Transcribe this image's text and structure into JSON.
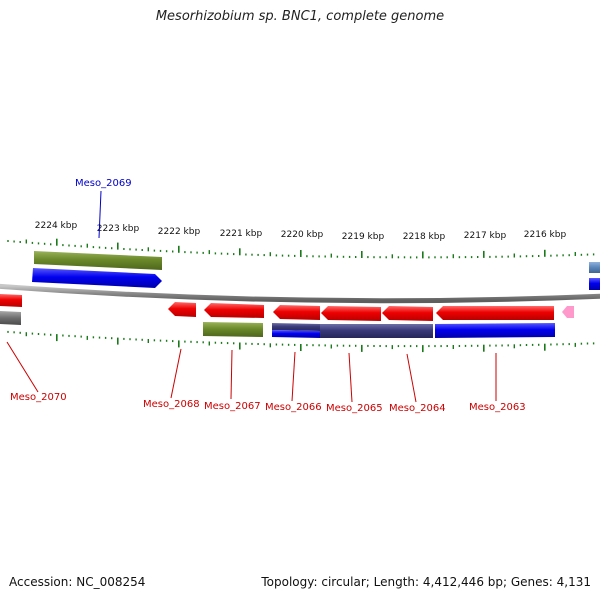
{
  "title": "Mesorhizobium sp. BNC1, complete genome",
  "footer": {
    "accession": "Accession: NC_008254",
    "summary": "Topology: circular; Length: 4,412,446 bp; Genes: 4,131"
  },
  "colors": {
    "cds_red": "#ee0000",
    "gene_olive": "#6b8a2a",
    "gene_blue": "#0000ee",
    "gene_navy": "#3a3a7a",
    "gene_pink": "#ff99cc",
    "gene_steel": "#5b86b8",
    "backbone": "#8a8a8a",
    "ticks": "#1a7a1a",
    "label_red": "#cc0000",
    "label_blue": "#0000cc"
  },
  "scale": {
    "labels": [
      "2224 kbp",
      "2223 kbp",
      "2222 kbp",
      "2221 kbp",
      "2220 kbp",
      "2219 kbp",
      "2218 kbp",
      "2217 kbp",
      "2216 kbp"
    ]
  },
  "genes": [
    {
      "name": "Meso_2069",
      "strand": "forward",
      "color": "label_blue"
    },
    {
      "name": "Meso_2070",
      "strand": "reverse",
      "color": "label_red"
    },
    {
      "name": "Meso_2068",
      "strand": "reverse",
      "color": "label_red"
    },
    {
      "name": "Meso_2067",
      "strand": "reverse",
      "color": "label_red"
    },
    {
      "name": "Meso_2066",
      "strand": "reverse",
      "color": "label_red"
    },
    {
      "name": "Meso_2065",
      "strand": "reverse",
      "color": "label_red"
    },
    {
      "name": "Meso_2064",
      "strand": "reverse",
      "color": "label_red"
    },
    {
      "name": "Meso_2063",
      "strand": "reverse",
      "color": "label_red"
    }
  ]
}
